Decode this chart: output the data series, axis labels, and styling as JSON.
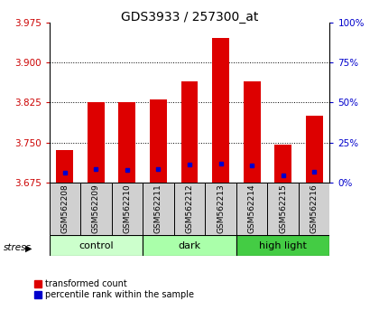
{
  "title": "GDS3933 / 257300_at",
  "samples": [
    "GSM562208",
    "GSM562209",
    "GSM562210",
    "GSM562211",
    "GSM562212",
    "GSM562213",
    "GSM562214",
    "GSM562215",
    "GSM562216"
  ],
  "bar_tops": [
    3.735,
    3.825,
    3.825,
    3.83,
    3.865,
    3.945,
    3.865,
    3.745,
    3.8
  ],
  "bar_base": 3.675,
  "blue_dots": [
    3.693,
    3.7,
    3.698,
    3.7,
    3.708,
    3.71,
    3.706,
    3.688,
    3.695
  ],
  "groups": [
    {
      "label": "control",
      "start": 0,
      "end": 3,
      "color": "#ccffcc"
    },
    {
      "label": "dark",
      "start": 3,
      "end": 6,
      "color": "#aaffaa"
    },
    {
      "label": "high light",
      "start": 6,
      "end": 9,
      "color": "#44cc44"
    }
  ],
  "ylim_left": [
    3.675,
    3.975
  ],
  "yticks_left": [
    3.675,
    3.75,
    3.825,
    3.9,
    3.975
  ],
  "ylim_right": [
    0,
    100
  ],
  "yticks_right": [
    0,
    25,
    50,
    75,
    100
  ],
  "ytick_labels_right": [
    "0%",
    "25%",
    "50%",
    "75%",
    "100%"
  ],
  "bar_color": "#dd0000",
  "dot_color": "#0000cc",
  "left_tick_color": "#cc0000",
  "right_tick_color": "#0000cc",
  "grid_yticks": [
    3.75,
    3.825,
    3.9
  ],
  "bar_width": 0.55,
  "sample_label_fontsize": 6.5,
  "title_fontsize": 10,
  "legend_fontsize": 7,
  "axis_tick_fontsize": 7.5,
  "group_fontsize": 8,
  "stress_fontsize": 7.5,
  "bg_color": "#ffffff"
}
